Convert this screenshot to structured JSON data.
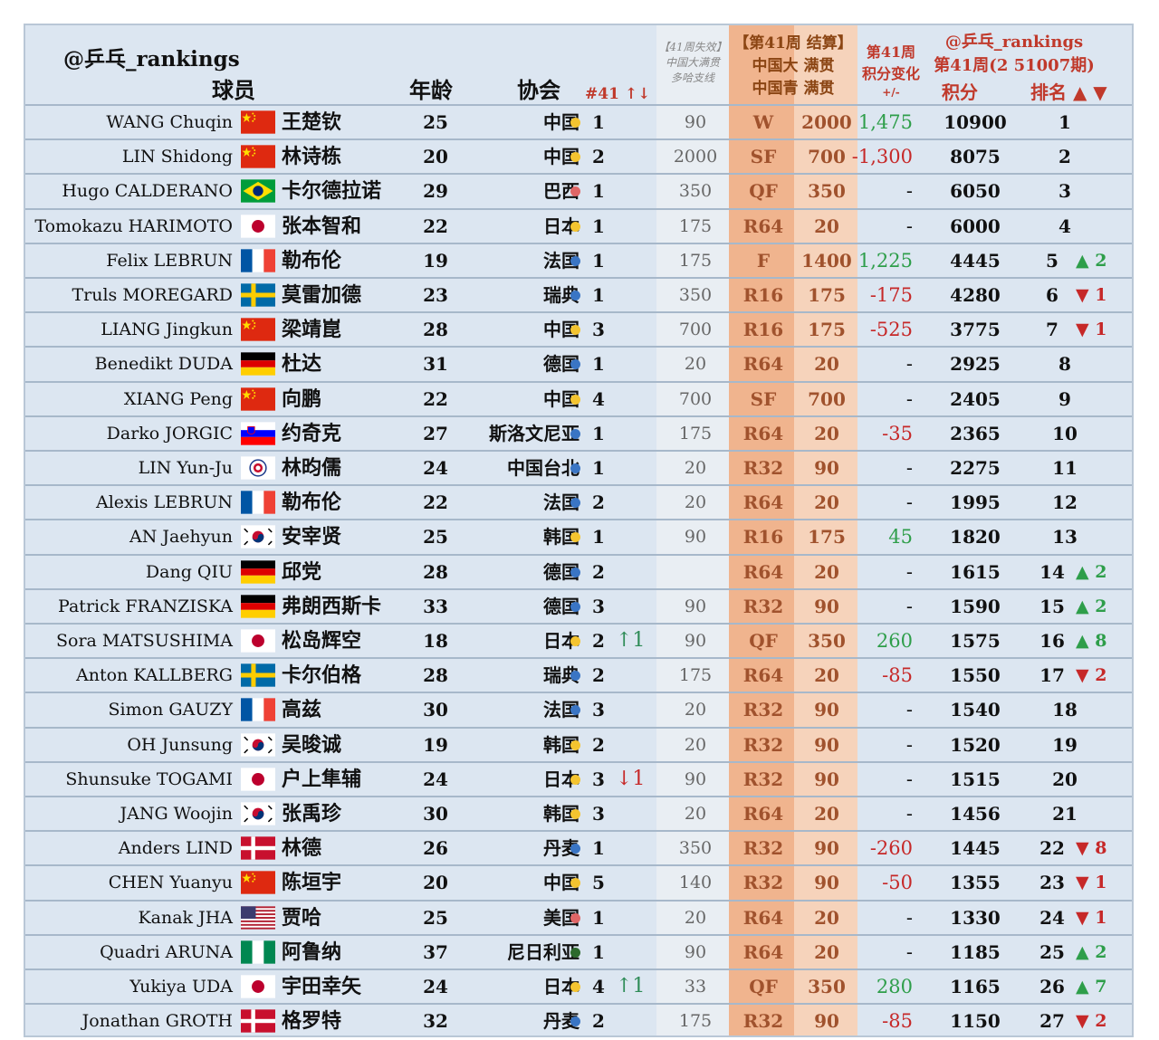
{
  "brand": "@乒乓_rankings",
  "headers": {
    "player": "球员",
    "age": "年龄",
    "association": "协会",
    "rank41": "#41 ↑↓",
    "expire_line1": "【41周失效】",
    "expire_line2": "中国大满贯",
    "expire_line3": "多哈支线",
    "settle_line1": "【第41周 结算】",
    "settle_line2": "中国大 满贯",
    "settle_line3": "中国青 满贯",
    "change_line1": "第41周",
    "change_line2": "积分变化",
    "change_line3": "+/-",
    "brand2": "@乒乓_rankings",
    "week_label": "第41周(2 51007期)",
    "points": "积分",
    "rank": "排名 ▲ ▼"
  },
  "colors": {
    "table_bg": "#dce6f1",
    "expire_col": "#e6ecf2",
    "settle_col": "#f3c6a6",
    "settle_result_col": "#f0b48e",
    "china_dot": "#f4c430",
    "europe_dot": "#3a75c4",
    "red_dot": "#e06666",
    "africa_dot": "#2d6a2d",
    "up": "#2e9e4a",
    "down": "#c62828"
  },
  "rows": [
    {
      "en": "WANG Chuqin",
      "flag": "cn",
      "cn": "王楚钦",
      "age": "25",
      "assoc": "中国",
      "dot": "yellow",
      "rank41": "1",
      "move": "",
      "prev": "90",
      "result": "W",
      "pts": "2000",
      "change": "1,475",
      "change_type": "pos",
      "total": "10900",
      "rank": "1",
      "rank_move": "",
      "rank_dir": ""
    },
    {
      "en": "LIN Shidong",
      "flag": "cn",
      "cn": "林诗栋",
      "age": "20",
      "assoc": "中国",
      "dot": "yellow",
      "rank41": "2",
      "move": "",
      "prev": "2000",
      "result": "SF",
      "pts": "700",
      "change": "-1,300",
      "change_type": "neg",
      "total": "8075",
      "rank": "2",
      "rank_move": "",
      "rank_dir": ""
    },
    {
      "en": "Hugo CALDERANO",
      "flag": "br",
      "cn": "卡尔德拉诺",
      "age": "29",
      "assoc": "巴西",
      "dot": "red",
      "rank41": "1",
      "move": "",
      "prev": "350",
      "result": "QF",
      "pts": "350",
      "change": "-",
      "change_type": "neu",
      "total": "6050",
      "rank": "3",
      "rank_move": "",
      "rank_dir": ""
    },
    {
      "en": "Tomokazu HARIMOTO",
      "flag": "jp",
      "cn": "张本智和",
      "age": "22",
      "assoc": "日本",
      "dot": "yellow",
      "rank41": "1",
      "move": "",
      "prev": "175",
      "result": "R64",
      "pts": "20",
      "change": "-",
      "change_type": "neu",
      "total": "6000",
      "rank": "4",
      "rank_move": "",
      "rank_dir": ""
    },
    {
      "en": "Felix LEBRUN",
      "flag": "fr",
      "cn": "勒布伦",
      "age": "19",
      "assoc": "法国",
      "dot": "blue",
      "rank41": "1",
      "move": "",
      "prev": "175",
      "result": "F",
      "pts": "1400",
      "change": "1,225",
      "change_type": "pos",
      "total": "4445",
      "rank": "5",
      "rank_move": "▲ 2",
      "rank_dir": "up"
    },
    {
      "en": "Truls MOREGARD",
      "flag": "se",
      "cn": "莫雷加德",
      "age": "23",
      "assoc": "瑞典",
      "dot": "blue",
      "rank41": "1",
      "move": "",
      "prev": "350",
      "result": "R16",
      "pts": "175",
      "change": "-175",
      "change_type": "neg",
      "total": "4280",
      "rank": "6",
      "rank_move": "▼ 1",
      "rank_dir": "down"
    },
    {
      "en": "LIANG Jingkun",
      "flag": "cn",
      "cn": "梁靖崑",
      "age": "28",
      "assoc": "中国",
      "dot": "yellow",
      "rank41": "3",
      "move": "",
      "prev": "700",
      "result": "R16",
      "pts": "175",
      "change": "-525",
      "change_type": "neg",
      "total": "3775",
      "rank": "7",
      "rank_move": "▼ 1",
      "rank_dir": "down"
    },
    {
      "en": "Benedikt DUDA",
      "flag": "de",
      "cn": "杜达",
      "age": "31",
      "assoc": "德国",
      "dot": "blue",
      "rank41": "1",
      "move": "",
      "prev": "20",
      "result": "R64",
      "pts": "20",
      "change": "-",
      "change_type": "neu",
      "total": "2925",
      "rank": "8",
      "rank_move": "",
      "rank_dir": ""
    },
    {
      "en": "XIANG Peng",
      "flag": "cn",
      "cn": "向鹏",
      "age": "22",
      "assoc": "中国",
      "dot": "yellow",
      "rank41": "4",
      "move": "",
      "prev": "700",
      "result": "SF",
      "pts": "700",
      "change": "-",
      "change_type": "neu",
      "total": "2405",
      "rank": "9",
      "rank_move": "",
      "rank_dir": ""
    },
    {
      "en": "Darko JORGIC",
      "flag": "si",
      "cn": "约奇克",
      "age": "27",
      "assoc": "斯洛文尼亚",
      "dot": "blue",
      "rank41": "1",
      "move": "",
      "prev": "175",
      "result": "R64",
      "pts": "20",
      "change": "-35",
      "change_type": "neg",
      "total": "2365",
      "rank": "10",
      "rank_move": "",
      "rank_dir": ""
    },
    {
      "en": "LIN Yun-Ju",
      "flag": "tpe",
      "cn": "林昀儒",
      "age": "24",
      "assoc": "中国台北",
      "dot": "blue",
      "rank41": "1",
      "move": "",
      "prev": "20",
      "result": "R32",
      "pts": "90",
      "change": "-",
      "change_type": "neu",
      "total": "2275",
      "rank": "11",
      "rank_move": "",
      "rank_dir": ""
    },
    {
      "en": "Alexis LEBRUN",
      "flag": "fr",
      "cn": "勒布伦",
      "age": "22",
      "assoc": "法国",
      "dot": "blue",
      "rank41": "2",
      "move": "",
      "prev": "20",
      "result": "R64",
      "pts": "20",
      "change": "-",
      "change_type": "neu",
      "total": "1995",
      "rank": "12",
      "rank_move": "",
      "rank_dir": ""
    },
    {
      "en": "AN Jaehyun",
      "flag": "kr",
      "cn": "安宰贤",
      "age": "25",
      "assoc": "韩国",
      "dot": "yellow",
      "rank41": "1",
      "move": "",
      "prev": "90",
      "result": "R16",
      "pts": "175",
      "change": "45",
      "change_type": "pos",
      "total": "1820",
      "rank": "13",
      "rank_move": "",
      "rank_dir": ""
    },
    {
      "en": "Dang QIU",
      "flag": "de",
      "cn": "邱党",
      "age": "28",
      "assoc": "德国",
      "dot": "blue",
      "rank41": "2",
      "move": "",
      "prev": "",
      "result": "R64",
      "pts": "20",
      "change": "-",
      "change_type": "neu",
      "total": "1615",
      "rank": "14",
      "rank_move": "▲ 2",
      "rank_dir": "up"
    },
    {
      "en": "Patrick FRANZISKA",
      "flag": "de",
      "cn": "弗朗西斯卡",
      "age": "33",
      "assoc": "德国",
      "dot": "blue",
      "rank41": "3",
      "move": "",
      "prev": "90",
      "result": "R32",
      "pts": "90",
      "change": "-",
      "change_type": "neu",
      "total": "1590",
      "rank": "15",
      "rank_move": "▲ 2",
      "rank_dir": "up"
    },
    {
      "en": "Sora MATSUSHIMA",
      "flag": "jp",
      "cn": "松岛辉空",
      "age": "18",
      "assoc": "日本",
      "dot": "yellow",
      "rank41": "2",
      "move": "↑1",
      "prev": "90",
      "result": "QF",
      "pts": "350",
      "change": "260",
      "change_type": "pos",
      "total": "1575",
      "rank": "16",
      "rank_move": "▲ 8",
      "rank_dir": "up"
    },
    {
      "en": "Anton KALLBERG",
      "flag": "se",
      "cn": "卡尔伯格",
      "age": "28",
      "assoc": "瑞典",
      "dot": "blue",
      "rank41": "2",
      "move": "",
      "prev": "175",
      "result": "R64",
      "pts": "20",
      "change": "-85",
      "change_type": "neg",
      "total": "1550",
      "rank": "17",
      "rank_move": "▼ 2",
      "rank_dir": "down"
    },
    {
      "en": "Simon GAUZY",
      "flag": "fr",
      "cn": "高兹",
      "age": "30",
      "assoc": "法国",
      "dot": "blue",
      "rank41": "3",
      "move": "",
      "prev": "20",
      "result": "R32",
      "pts": "90",
      "change": "-",
      "change_type": "neu",
      "total": "1540",
      "rank": "18",
      "rank_move": "",
      "rank_dir": ""
    },
    {
      "en": "OH Junsung",
      "flag": "kr",
      "cn": "吴晙诚",
      "age": "19",
      "assoc": "韩国",
      "dot": "yellow",
      "rank41": "2",
      "move": "",
      "prev": "20",
      "result": "R32",
      "pts": "90",
      "change": "-",
      "change_type": "neu",
      "total": "1520",
      "rank": "19",
      "rank_move": "",
      "rank_dir": ""
    },
    {
      "en": "Shunsuke TOGAMI",
      "flag": "jp",
      "cn": "户上隼辅",
      "age": "24",
      "assoc": "日本",
      "dot": "yellow",
      "rank41": "3",
      "move": "↓1",
      "prev": "90",
      "result": "R32",
      "pts": "90",
      "change": "-",
      "change_type": "neu",
      "total": "1515",
      "rank": "20",
      "rank_move": "",
      "rank_dir": ""
    },
    {
      "en": "JANG Woojin",
      "flag": "kr",
      "cn": "张禹珍",
      "age": "30",
      "assoc": "韩国",
      "dot": "yellow",
      "rank41": "3",
      "move": "",
      "prev": "20",
      "result": "R64",
      "pts": "20",
      "change": "-",
      "change_type": "neu",
      "total": "1456",
      "rank": "21",
      "rank_move": "",
      "rank_dir": ""
    },
    {
      "en": "Anders LIND",
      "flag": "dk",
      "cn": "林德",
      "age": "26",
      "assoc": "丹麦",
      "dot": "blue",
      "rank41": "1",
      "move": "",
      "prev": "350",
      "result": "R32",
      "pts": "90",
      "change": "-260",
      "change_type": "neg",
      "total": "1445",
      "rank": "22",
      "rank_move": "▼ 8",
      "rank_dir": "down"
    },
    {
      "en": "CHEN Yuanyu",
      "flag": "cn",
      "cn": "陈垣宇",
      "age": "20",
      "assoc": "中国",
      "dot": "yellow",
      "rank41": "5",
      "move": "",
      "prev": "140",
      "result": "R32",
      "pts": "90",
      "change": "-50",
      "change_type": "neg",
      "total": "1355",
      "rank": "23",
      "rank_move": "▼ 1",
      "rank_dir": "down"
    },
    {
      "en": "Kanak JHA",
      "flag": "us",
      "cn": "贾哈",
      "age": "25",
      "assoc": "美国",
      "dot": "red",
      "rank41": "1",
      "move": "",
      "prev": "20",
      "result": "R64",
      "pts": "20",
      "change": "-",
      "change_type": "neu",
      "total": "1330",
      "rank": "24",
      "rank_move": "▼ 1",
      "rank_dir": "down"
    },
    {
      "en": "Quadri ARUNA",
      "flag": "ng",
      "cn": "阿鲁纳",
      "age": "37",
      "assoc": "尼日利亚",
      "dot": "green",
      "rank41": "1",
      "move": "",
      "prev": "90",
      "result": "R64",
      "pts": "20",
      "change": "-",
      "change_type": "neu",
      "total": "1185",
      "rank": "25",
      "rank_move": "▲ 2",
      "rank_dir": "up"
    },
    {
      "en": "Yukiya UDA",
      "flag": "jp",
      "cn": "宇田幸矢",
      "age": "24",
      "assoc": "日本",
      "dot": "yellow",
      "rank41": "4",
      "move": "↑1",
      "prev": "33",
      "result": "QF",
      "pts": "350",
      "change": "280",
      "change_type": "pos",
      "total": "1165",
      "rank": "26",
      "rank_move": "▲ 7",
      "rank_dir": "up"
    },
    {
      "en": "Jonathan GROTH",
      "flag": "dk",
      "cn": "格罗特",
      "age": "32",
      "assoc": "丹麦",
      "dot": "blue",
      "rank41": "2",
      "move": "",
      "prev": "175",
      "result": "R32",
      "pts": "90",
      "change": "-85",
      "change_type": "neg",
      "total": "1150",
      "rank": "27",
      "rank_move": "▼ 2",
      "rank_dir": "down"
    }
  ]
}
